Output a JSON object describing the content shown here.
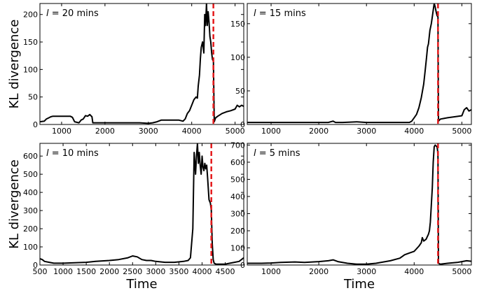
{
  "chart_data": [
    {
      "type": "line",
      "annotation_var": "l",
      "annotation_rest": " = 20 mins",
      "ylabel": "KL divergence",
      "xlabel": "",
      "xlim": [
        500,
        5200
      ],
      "ylim": [
        0,
        220
      ],
      "xticks": [
        1000,
        2000,
        3000,
        4000,
        5000
      ],
      "yticks": [
        0,
        50,
        100,
        150,
        200
      ],
      "vline_x": 4500,
      "vline_color": "#e41a1c",
      "line_color": "#000000",
      "series": [
        {
          "x": [
            500,
            600,
            650,
            700,
            750,
            800,
            900,
            1000,
            1100,
            1200,
            1250,
            1300,
            1400,
            1450,
            1500,
            1550,
            1600,
            1650,
            1700,
            1720,
            1800,
            2000,
            2200,
            2400,
            2600,
            2800,
            3000,
            3100,
            3200,
            3300,
            3400,
            3500,
            3600,
            3700,
            3800,
            3850,
            3900,
            3950,
            4000,
            4050,
            4100,
            4130,
            4150,
            4180,
            4200,
            4220,
            4250,
            4280,
            4300,
            4320,
            4340,
            4360,
            4380,
            4400,
            4420,
            4440,
            4460,
            4480,
            4500,
            4520,
            4550,
            4600,
            4700,
            4800,
            4900,
            5000,
            5050,
            5100,
            5150,
            5200
          ],
          "y": [
            5,
            6,
            10,
            12,
            14,
            15,
            15,
            15,
            15,
            15,
            13,
            5,
            3,
            8,
            10,
            16,
            15,
            18,
            14,
            3,
            3,
            3,
            3,
            3,
            3,
            3,
            2,
            3,
            5,
            8,
            8,
            8,
            8,
            8,
            6,
            10,
            20,
            25,
            35,
            45,
            50,
            48,
            70,
            90,
            120,
            140,
            150,
            130,
            200,
            180,
            220,
            180,
            205,
            185,
            160,
            150,
            130,
            118,
            115,
            5,
            12,
            15,
            20,
            23,
            25,
            28,
            35,
            32,
            35,
            33
          ]
        }
      ]
    },
    {
      "type": "line",
      "annotation_var": "l",
      "annotation_rest": " = 15 mins",
      "ylabel": "",
      "xlabel": "",
      "xlim": [
        500,
        5200
      ],
      "ylim": [
        0,
        180
      ],
      "xticks": [
        1000,
        2000,
        3000,
        4000,
        5000
      ],
      "yticks": [
        0,
        50,
        100,
        150
      ],
      "vline_x": 4500,
      "vline_color": "#e41a1c",
      "line_color": "#000000",
      "series": [
        {
          "x": [
            500,
            1000,
            1500,
            2000,
            2200,
            2300,
            2350,
            2500,
            2800,
            3000,
            3200,
            3400,
            3600,
            3800,
            3900,
            3950,
            4000,
            4050,
            4100,
            4150,
            4200,
            4230,
            4260,
            4280,
            4300,
            4330,
            4360,
            4380,
            4400,
            4420,
            4440,
            4460,
            4480,
            4500,
            4510,
            4550,
            4700,
            4900,
            5000,
            5050,
            5100,
            5150,
            5200
          ],
          "y": [
            3,
            3,
            3,
            3,
            3,
            5,
            3,
            3,
            4,
            3,
            3,
            3,
            3,
            3,
            3,
            5,
            10,
            15,
            25,
            40,
            60,
            80,
            100,
            115,
            120,
            140,
            150,
            160,
            170,
            180,
            175,
            168,
            162,
            160,
            5,
            8,
            10,
            12,
            13,
            22,
            25,
            20,
            22
          ]
        }
      ]
    },
    {
      "type": "line",
      "annotation_var": "l",
      "annotation_rest": " = 10 mins",
      "ylabel": "KL divergence",
      "xlabel": "Time",
      "xlim": [
        500,
        4900
      ],
      "ylim": [
        0,
        670
      ],
      "xticks": [
        500,
        1000,
        1500,
        2000,
        2500,
        3000,
        3500,
        4000,
        4500
      ],
      "yticks": [
        0,
        100,
        200,
        300,
        400,
        500,
        600
      ],
      "vline_x": 4200,
      "vline_color": "#e41a1c",
      "line_color": "#000000",
      "series": [
        {
          "x": [
            500,
            550,
            600,
            700,
            800,
            1000,
            1200,
            1500,
            1700,
            2000,
            2200,
            2400,
            2500,
            2600,
            2700,
            2800,
            2900,
            3000,
            3200,
            3400,
            3600,
            3700,
            3750,
            3800,
            3830,
            3860,
            3880,
            3900,
            3920,
            3940,
            3960,
            3980,
            4000,
            4020,
            4040,
            4060,
            4080,
            4100,
            4120,
            4150,
            4180,
            4200,
            4220,
            4240,
            4260,
            4300,
            4400,
            4500,
            4600,
            4700,
            4800,
            4900
          ],
          "y": [
            35,
            30,
            20,
            15,
            10,
            10,
            12,
            15,
            20,
            25,
            30,
            40,
            50,
            45,
            30,
            25,
            25,
            20,
            15,
            15,
            20,
            25,
            40,
            200,
            620,
            500,
            600,
            670,
            560,
            620,
            550,
            500,
            600,
            540,
            520,
            560,
            530,
            550,
            480,
            360,
            340,
            300,
            120,
            30,
            10,
            5,
            5,
            5,
            10,
            15,
            20,
            40
          ]
        }
      ]
    },
    {
      "type": "line",
      "annotation_var": "l",
      "annotation_rest": " = 5 mins",
      "ylabel": "",
      "xlabel": "Time",
      "xlim": [
        500,
        5200
      ],
      "ylim": [
        0,
        710
      ],
      "xticks": [
        1000,
        2000,
        3000,
        4000,
        5000
      ],
      "yticks": [
        0,
        100,
        200,
        300,
        400,
        500,
        600,
        700
      ],
      "vline_x": 4500,
      "vline_color": "#e41a1c",
      "line_color": "#000000",
      "series": [
        {
          "x": [
            500,
            800,
            1000,
            1200,
            1500,
            1700,
            2000,
            2200,
            2300,
            2400,
            2600,
            2800,
            3000,
            3200,
            3500,
            3700,
            3800,
            3900,
            4000,
            4100,
            4150,
            4170,
            4200,
            4250,
            4300,
            4320,
            4340,
            4360,
            4380,
            4400,
            4420,
            4440,
            4460,
            4480,
            4490,
            4500,
            4510,
            4550,
            4700,
            4900,
            5000,
            5100,
            5200
          ],
          "y": [
            10,
            10,
            12,
            15,
            18,
            15,
            20,
            25,
            30,
            20,
            10,
            5,
            5,
            10,
            25,
            40,
            60,
            70,
            80,
            110,
            130,
            160,
            140,
            150,
            180,
            200,
            250,
            350,
            450,
            600,
            690,
            700,
            695,
            690,
            670,
            630,
            10,
            5,
            10,
            15,
            20,
            25,
            22
          ]
        }
      ]
    }
  ]
}
